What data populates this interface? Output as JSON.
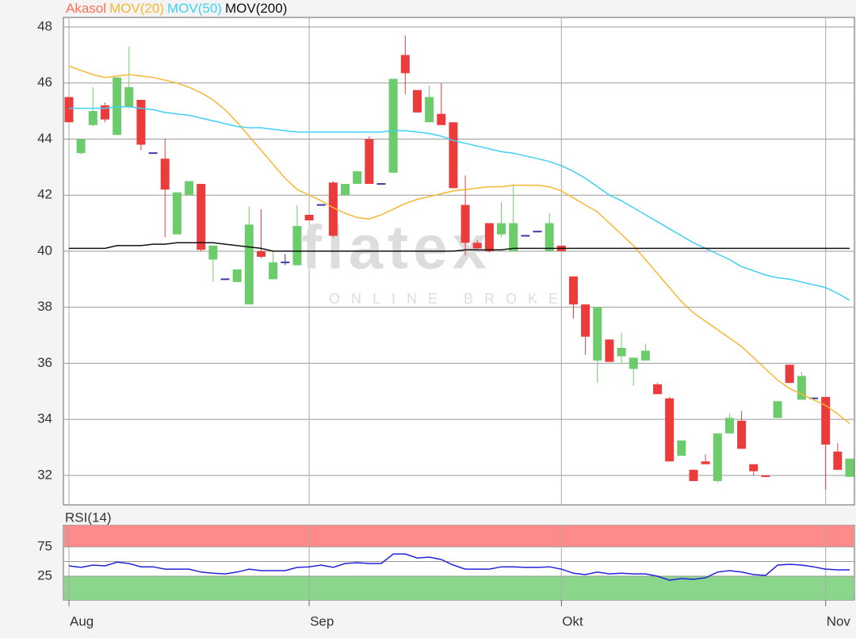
{
  "chart_data": [
    {
      "type": "candlestick",
      "watermark": {
        "logo": "flatex",
        "tagline": "ONLINE BROKER"
      },
      "ylim": [
        30.95,
        48.34
      ],
      "yticks": [
        32,
        34,
        36,
        38,
        40,
        42,
        44,
        46,
        48
      ],
      "grid": true,
      "series": [
        {
          "name": "Akasol",
          "type": "candlestick",
          "color": "#ff6f55",
          "up_color": "#6ccc6c",
          "down_color": "#ec3b3b",
          "flat_color": "#3b3ba8",
          "open": [
            45.5,
            43.5,
            44.5,
            45.2,
            44.15,
            45.15,
            45.4,
            43.5,
            43.3,
            40.6,
            42.0,
            42.4,
            39.7,
            39.0,
            38.9,
            38.1,
            40.0,
            39.0,
            39.6,
            39.5,
            41.3,
            41.65,
            42.45,
            42.0,
            42.4,
            44.0,
            42.4,
            42.8,
            47.0,
            45.75,
            44.6,
            44.9,
            44.6,
            41.65,
            40.3,
            41.0,
            40.6,
            40.0,
            40.55,
            40.7,
            40.0,
            40.2,
            39.1,
            38.1,
            36.1,
            36.85,
            36.25,
            35.8,
            36.1,
            35.25,
            34.75,
            32.7,
            32.2,
            32.5,
            31.8,
            33.5,
            33.95,
            32.4,
            32.0,
            34.05,
            35.95,
            34.7,
            34.75,
            34.8,
            32.85,
            31.95
          ],
          "high": [
            45.5,
            44.0,
            45.85,
            45.3,
            46.2,
            47.3,
            45.4,
            43.5,
            44.0,
            42.1,
            42.5,
            42.4,
            40.2,
            39.0,
            39.35,
            41.6,
            41.5,
            40.0,
            39.9,
            41.65,
            41.3,
            41.65,
            42.5,
            42.4,
            42.85,
            44.1,
            42.4,
            46.15,
            47.7,
            45.75,
            45.9,
            46.0,
            44.6,
            42.7,
            40.4,
            41.0,
            41.75,
            42.4,
            40.55,
            40.7,
            41.35,
            40.2,
            39.1,
            38.1,
            38.0,
            36.85,
            37.1,
            36.2,
            36.7,
            35.3,
            34.8,
            33.25,
            32.2,
            32.75,
            33.5,
            34.2,
            34.3,
            32.4,
            32.0,
            34.65,
            35.95,
            35.7,
            34.75,
            34.8,
            33.15,
            32.6
          ],
          "low": [
            44.6,
            43.45,
            44.45,
            44.6,
            44.15,
            45.1,
            43.6,
            43.5,
            40.5,
            40.6,
            42.0,
            40.0,
            38.9,
            39.0,
            38.9,
            38.1,
            39.75,
            39.0,
            39.5,
            39.5,
            41.1,
            41.65,
            40.5,
            42.0,
            42.4,
            42.4,
            42.4,
            42.8,
            45.6,
            44.95,
            44.6,
            44.5,
            42.25,
            39.85,
            40.05,
            39.95,
            40.5,
            40.0,
            40.55,
            40.7,
            40.0,
            40.0,
            37.6,
            36.3,
            35.3,
            36.05,
            36.0,
            35.2,
            36.1,
            34.9,
            32.5,
            32.7,
            31.8,
            32.4,
            31.75,
            33.5,
            32.95,
            32.0,
            31.95,
            34.05,
            35.3,
            34.7,
            34.75,
            31.5,
            32.2,
            31.95
          ],
          "close": [
            44.6,
            44.0,
            45.0,
            44.7,
            46.2,
            45.85,
            43.8,
            43.5,
            42.2,
            42.1,
            42.5,
            40.05,
            40.2,
            39.0,
            39.35,
            40.95,
            39.8,
            39.6,
            39.6,
            40.9,
            41.1,
            41.65,
            40.55,
            42.4,
            42.85,
            42.4,
            42.4,
            46.15,
            46.35,
            44.95,
            45.5,
            44.5,
            42.25,
            40.3,
            40.1,
            40.0,
            41.0,
            41.0,
            40.55,
            40.7,
            41.0,
            40.0,
            38.1,
            36.95,
            38.0,
            36.05,
            36.55,
            36.2,
            36.45,
            34.9,
            32.5,
            33.25,
            31.8,
            32.4,
            33.5,
            34.05,
            32.95,
            32.15,
            31.95,
            34.65,
            35.3,
            35.55,
            34.75,
            33.1,
            32.2,
            32.6
          ]
        },
        {
          "name": "MOV(20)",
          "type": "line",
          "color": "#f7b733",
          "values": [
            46.6,
            46.45,
            46.3,
            46.2,
            46.25,
            46.3,
            46.25,
            46.2,
            46.1,
            46.0,
            45.85,
            45.65,
            45.4,
            45.05,
            44.6,
            44.1,
            43.6,
            43.1,
            42.6,
            42.2,
            42.0,
            41.8,
            41.55,
            41.35,
            41.2,
            41.15,
            41.3,
            41.5,
            41.7,
            41.85,
            41.95,
            42.05,
            42.15,
            42.2,
            42.25,
            42.3,
            42.3,
            42.35,
            42.35,
            42.35,
            42.3,
            42.15,
            41.9,
            41.65,
            41.4,
            41.0,
            40.6,
            40.2,
            39.7,
            39.2,
            38.7,
            38.2,
            37.8,
            37.5,
            37.2,
            36.9,
            36.6,
            36.2,
            35.8,
            35.4,
            35.1,
            34.9,
            34.7,
            34.5,
            34.2,
            33.85
          ]
        },
        {
          "name": "MOV(50)",
          "type": "line",
          "color": "#3fd0f5",
          "values": [
            45.1,
            45.1,
            45.1,
            45.1,
            45.15,
            45.15,
            45.1,
            45.05,
            44.95,
            44.9,
            44.85,
            44.75,
            44.65,
            44.55,
            44.45,
            44.4,
            44.4,
            44.35,
            44.3,
            44.25,
            44.25,
            44.25,
            44.25,
            44.25,
            44.25,
            44.25,
            44.25,
            44.3,
            44.3,
            44.25,
            44.2,
            44.1,
            43.95,
            43.85,
            43.75,
            43.65,
            43.55,
            43.5,
            43.4,
            43.3,
            43.2,
            43.05,
            42.85,
            42.6,
            42.3,
            42.0,
            41.8,
            41.55,
            41.3,
            41.05,
            40.8,
            40.55,
            40.3,
            40.1,
            39.9,
            39.7,
            39.45,
            39.3,
            39.15,
            39.05,
            39.0,
            38.9,
            38.8,
            38.7,
            38.5,
            38.25
          ]
        },
        {
          "name": "MOV(200)",
          "type": "line",
          "color": "#111111",
          "values": [
            40.1,
            40.1,
            40.1,
            40.1,
            40.2,
            40.2,
            40.2,
            40.25,
            40.25,
            40.3,
            40.3,
            40.3,
            40.3,
            40.25,
            40.2,
            40.15,
            40.1,
            40.0,
            40.0,
            40.0,
            40.0,
            40.0,
            40.0,
            40.0,
            40.0,
            40.0,
            40.0,
            40.0,
            40.0,
            40.0,
            40.0,
            40.0,
            40.0,
            40.05,
            40.05,
            40.05,
            40.05,
            40.1,
            40.1,
            40.1,
            40.1,
            40.1,
            40.1,
            40.1,
            40.1,
            40.1,
            40.1,
            40.1,
            40.1,
            40.1,
            40.1,
            40.1,
            40.1,
            40.1,
            40.1,
            40.1,
            40.1,
            40.1,
            40.1,
            40.1,
            40.1,
            40.1,
            40.1,
            40.1,
            40.1,
            40.1
          ]
        }
      ]
    },
    {
      "type": "line",
      "title": "RSI(14)",
      "title_color": "#1a1acc",
      "categories": [
        "Aug",
        null,
        null,
        null,
        null,
        null,
        null,
        null,
        null,
        null,
        null,
        null,
        null,
        null,
        null,
        null,
        null,
        null,
        null,
        null,
        "Sep",
        null,
        null,
        null,
        null,
        null,
        null,
        null,
        null,
        null,
        null,
        null,
        null,
        null,
        null,
        null,
        null,
        null,
        null,
        null,
        null,
        "Okt",
        null,
        null,
        null,
        null,
        null,
        null,
        null,
        null,
        null,
        null,
        null,
        null,
        null,
        null,
        null,
        null,
        null,
        null,
        null,
        null,
        null,
        "Nov",
        null,
        null
      ],
      "ylim": [
        -15.5,
        111.5
      ],
      "yticks": [
        25,
        75
      ],
      "reference_lines": [
        50
      ],
      "grid": true,
      "bands": [
        {
          "from": 75,
          "to": 111.5,
          "color": "#ff8a8a"
        },
        {
          "from": -15.5,
          "to": 25,
          "color": "#8ad68a"
        }
      ],
      "series": [
        {
          "name": "RSI(14)",
          "color": "#2222dd",
          "values": [
            42.6,
            40,
            44,
            42.6,
            49,
            46.6,
            41,
            41,
            37,
            37,
            37,
            32,
            30,
            29,
            32,
            37,
            34.5,
            34.5,
            34.5,
            40,
            41,
            44,
            40,
            46.6,
            48,
            46.6,
            46.6,
            62.8,
            62.8,
            56,
            57.4,
            53.4,
            44,
            37,
            37,
            37,
            41,
            41,
            40,
            40,
            41,
            37,
            30,
            27.7,
            32,
            29,
            30,
            29,
            29,
            25,
            18.2,
            21,
            19.6,
            22.3,
            32,
            34.5,
            32,
            27.7,
            26.4,
            44,
            45.3,
            44,
            41,
            37,
            35.8,
            35.8
          ]
        }
      ]
    }
  ]
}
